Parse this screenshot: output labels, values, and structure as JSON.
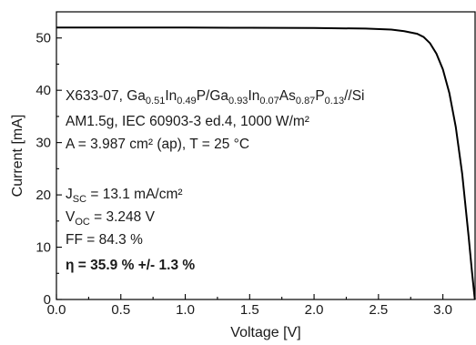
{
  "chart_data": {
    "type": "line",
    "xlabel": "Voltage [V]",
    "ylabel": "Current [mA]",
    "xlim": [
      0.0,
      3.25
    ],
    "ylim": [
      0,
      55
    ],
    "xticks": [
      0.0,
      0.5,
      1.0,
      1.5,
      2.0,
      2.5,
      3.0
    ],
    "xtick_labels": [
      "0.0",
      "0.5",
      "1.0",
      "1.5",
      "2.0",
      "2.5",
      "3.0"
    ],
    "yticks": [
      0,
      10,
      20,
      30,
      40,
      50
    ],
    "ytick_labels": [
      "0",
      "10",
      "20",
      "30",
      "40",
      "50"
    ],
    "grid": false,
    "legend": "none",
    "series": [
      {
        "x": [
          0.0,
          0.5,
          1.0,
          1.5,
          2.0,
          2.4,
          2.6,
          2.7,
          2.8,
          2.85,
          2.9,
          2.95,
          3.0,
          3.05,
          3.1,
          3.15,
          3.2,
          3.225,
          3.248
        ],
        "y": [
          52.0,
          52.0,
          52.0,
          51.95,
          51.9,
          51.8,
          51.6,
          51.3,
          50.8,
          50.2,
          49.0,
          47.0,
          44.0,
          39.5,
          33.0,
          24.0,
          12.0,
          5.5,
          0.0
        ],
        "color": "#000000"
      }
    ],
    "annotations": [
      [
        {
          "t": "X633-07,  Ga"
        },
        {
          "t": "0.51",
          "sub": true
        },
        {
          "t": "In"
        },
        {
          "t": "0.49",
          "sub": true
        },
        {
          "t": "P/Ga"
        },
        {
          "t": "0.93",
          "sub": true
        },
        {
          "t": "In"
        },
        {
          "t": "0.07",
          "sub": true
        },
        {
          "t": "As"
        },
        {
          "t": "0.87",
          "sub": true
        },
        {
          "t": "P"
        },
        {
          "t": "0.13",
          "sub": true
        },
        {
          "t": "//Si"
        }
      ],
      [
        {
          "t": "AM1.5g, IEC 60903-3 ed.4, 1000 W/m²"
        }
      ],
      [
        {
          "t": "A = 3.987 cm² (ap), T = 25 °C"
        }
      ],
      [],
      [
        {
          "t": "J"
        },
        {
          "t": "SC",
          "sub": true
        },
        {
          "t": " = 13.1 mA/cm²"
        }
      ],
      [
        {
          "t": "V"
        },
        {
          "t": "OC",
          "sub": true
        },
        {
          "t": " = 3.248 V"
        }
      ],
      [
        {
          "t": "FF = 84.3 %"
        }
      ],
      [
        {
          "t": "η = 35.9 % +/- 1.3 %",
          "bold": true
        }
      ]
    ]
  }
}
